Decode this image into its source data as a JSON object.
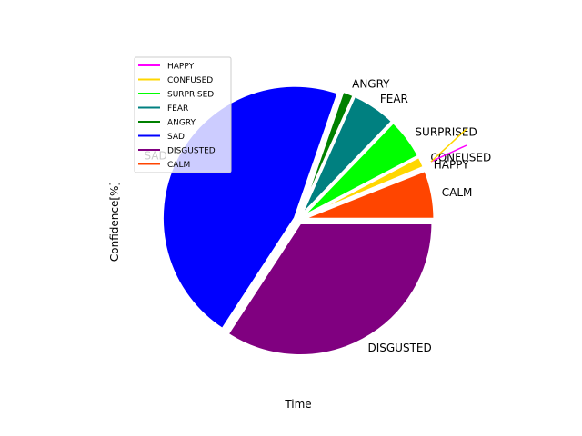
{
  "chart_data": {
    "type": "line+pie",
    "xlabel": "Time",
    "ylabel": "Confidence[%]",
    "legend_placement": "upper-left",
    "legend": [
      {
        "name": "HAPPY",
        "color": "#ff00ff"
      },
      {
        "name": "CONFUSED",
        "color": "#ffd700"
      },
      {
        "name": "SURPRISED",
        "color": "#00ff00"
      },
      {
        "name": "FEAR",
        "color": "#008080"
      },
      {
        "name": "ANGRY",
        "color": "#008000"
      },
      {
        "name": "SAD",
        "color": "#0000ff"
      },
      {
        "name": "DISGUSTED",
        "color": "#800080"
      },
      {
        "name": "CALM",
        "color": "#ff4500"
      }
    ],
    "line_series": [
      {
        "name": "HAPPY",
        "color": "#ff00ff"
      },
      {
        "name": "CONFUSED",
        "color": "#ffd700"
      }
    ],
    "pie": {
      "slices": [
        {
          "label": "CALM",
          "value": 6.0,
          "color": "#ff4500"
        },
        {
          "label": "HAPPY",
          "value": 0.3,
          "color": "#ff00ff"
        },
        {
          "label": "CONFUSED",
          "value": 1.4,
          "color": "#ffd700"
        },
        {
          "label": "SURPRISED",
          "value": 5.1,
          "color": "#00ff00"
        },
        {
          "label": "FEAR",
          "value": 5.5,
          "color": "#008080"
        },
        {
          "label": "ANGRY",
          "value": 1.4,
          "color": "#008000"
        },
        {
          "label": "SAD",
          "value": 46.1,
          "color": "#0000ff"
        },
        {
          "label": "DISGUSTED",
          "value": 34.2,
          "color": "#800080"
        }
      ]
    }
  }
}
